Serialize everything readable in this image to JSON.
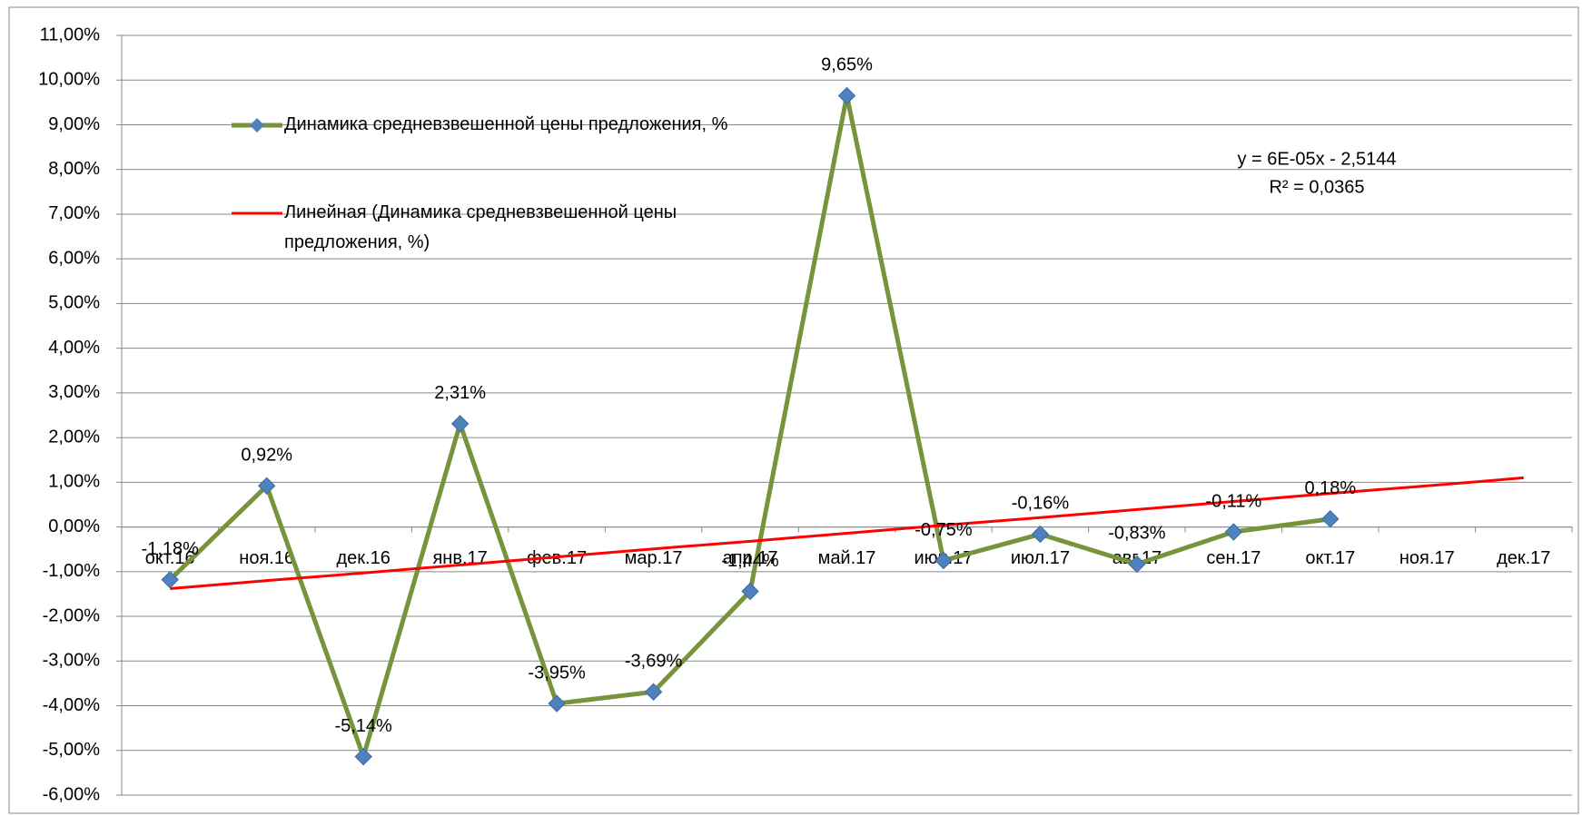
{
  "chart_data": {
    "type": "line",
    "categories": [
      "окт.16",
      "ноя.16",
      "дек.16",
      "янв.17",
      "фев.17",
      "мар.17",
      "апр.17",
      "май.17",
      "июн.17",
      "июл.17",
      "авг.17",
      "сен.17",
      "окт.17",
      "ноя.17",
      "дек.17"
    ],
    "series": [
      {
        "name": "Динамика средневзвешенной цены предложения, %",
        "color": "#77933c",
        "marker_color": "#4f81bd",
        "values": [
          -1.18,
          0.92,
          -5.14,
          2.31,
          -3.95,
          -3.69,
          -1.44,
          9.65,
          -0.75,
          -0.16,
          -0.83,
          -0.11,
          0.18,
          null,
          null
        ],
        "value_labels": [
          "-1,18%",
          "0,92%",
          "-5,14%",
          "2,31%",
          "-3,95%",
          "-3,69%",
          "-1,44%",
          "9,65%",
          "-0,75%",
          "-0,16%",
          "-0,83%",
          "-0,11%",
          "0,18%",
          null,
          null
        ]
      },
      {
        "name": "Линейная (Динамика средневзвешенной цены предложения, %)",
        "color": "#ff0000",
        "values": [
          -1.38,
          -1.2,
          -1.03,
          -0.85,
          -0.67,
          -0.49,
          -0.32,
          -0.14,
          0.04,
          0.21,
          0.39,
          0.57,
          0.75,
          0.92,
          1.1
        ]
      }
    ],
    "annotations": [
      "y = 6E-05x - 2,5144",
      "R² = 0,0365"
    ],
    "ylim": [
      -6,
      11
    ],
    "yticks": [
      {
        "value": -6,
        "label": "-6,00%"
      },
      {
        "value": -5,
        "label": "-5,00%"
      },
      {
        "value": -4,
        "label": "-4,00%"
      },
      {
        "value": -3,
        "label": "-3,00%"
      },
      {
        "value": -2,
        "label": "-2,00%"
      },
      {
        "value": -1,
        "label": "-1,00%"
      },
      {
        "value": 0,
        "label": "0,00%"
      },
      {
        "value": 1,
        "label": "1,00%"
      },
      {
        "value": 2,
        "label": "2,00%"
      },
      {
        "value": 3,
        "label": "3,00%"
      },
      {
        "value": 4,
        "label": "4,00%"
      },
      {
        "value": 5,
        "label": "5,00%"
      },
      {
        "value": 6,
        "label": "6,00%"
      },
      {
        "value": 7,
        "label": "7,00%"
      },
      {
        "value": 8,
        "label": "8,00%"
      },
      {
        "value": 9,
        "label": "9,00%"
      },
      {
        "value": 10,
        "label": "10,00%"
      },
      {
        "value": 11,
        "label": "11,00%"
      }
    ],
    "grid": true,
    "legend": "top-left"
  }
}
